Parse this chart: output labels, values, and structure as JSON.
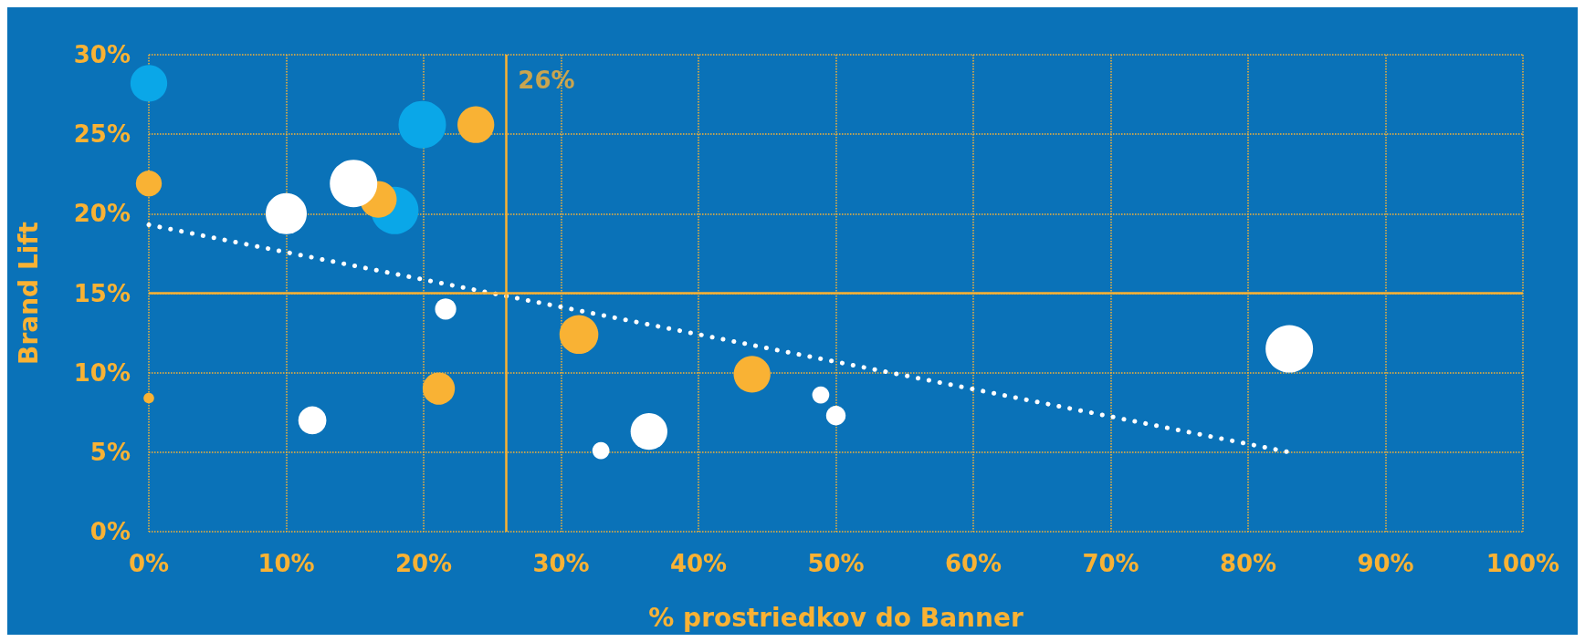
{
  "chart_data": {
    "type": "bubble",
    "xlabel": "% prostriedkov do Banner",
    "ylabel": "Brand Lift",
    "xlim": [
      0,
      100
    ],
    "xticks": [
      {
        "value": 0,
        "label": "0%"
      },
      {
        "value": 10,
        "label": "10%"
      },
      {
        "value": 20,
        "label": "20%"
      },
      {
        "value": 30,
        "label": "30%"
      },
      {
        "value": 40,
        "label": "40%"
      },
      {
        "value": 50,
        "label": "50%"
      },
      {
        "value": 60,
        "label": "60%"
      },
      {
        "value": 70,
        "label": "70%"
      },
      {
        "value": 80,
        "label": "80%"
      },
      {
        "value": 90,
        "label": "90%"
      },
      {
        "value": 100,
        "label": "100%"
      }
    ],
    "ylim": [
      0,
      30
    ],
    "yticks": [
      {
        "value": 0,
        "label": "0%"
      },
      {
        "value": 5,
        "label": "5%"
      },
      {
        "value": 10,
        "label": "10%"
      },
      {
        "value": 15,
        "label": "15%"
      },
      {
        "value": 20,
        "label": "20%"
      },
      {
        "value": 25,
        "label": "25%"
      },
      {
        "value": 30,
        "label": "30%"
      }
    ],
    "grid": true,
    "series": [
      {
        "color": "#0aa7e8",
        "x": [
          0,
          19.9,
          17.9
        ],
        "values": [
          28.2,
          25.6,
          20.2
        ],
        "sizes": [
          0.6,
          1,
          1
        ]
      },
      {
        "color": "#f9b234",
        "x": [
          23.8,
          0,
          16.7,
          31.3,
          21.1,
          43.9,
          0
        ],
        "values": [
          25.6,
          21.9,
          20.9,
          12.4,
          9.0,
          9.9,
          8.4
        ],
        "sizes": [
          0.6,
          0.3,
          0.6,
          0.67,
          0.46,
          0.6,
          0.05
        ]
      },
      {
        "color": "#ffffff",
        "x": [
          14.9,
          10.0,
          21.6,
          11.9,
          36.4,
          32.9,
          48.9,
          50.0,
          83.0
        ],
        "values": [
          21.9,
          20.0,
          14.0,
          7.0,
          6.3,
          5.1,
          8.6,
          7.3,
          11.5
        ],
        "sizes": [
          1,
          0.75,
          0.2,
          0.35,
          0.6,
          0.13,
          0.13,
          0.17,
          1
        ]
      },
      {
        "type": "line",
        "color": "#ffffff",
        "line_style": "dotted",
        "x": [
          0,
          83
        ],
        "values": [
          19.3,
          5.0
        ]
      }
    ],
    "ref_lines": [
      {
        "axis": "x",
        "value": 26,
        "label": "26%",
        "color": "#f9b234"
      },
      {
        "axis": "y",
        "value": 15,
        "color": "#f9b234"
      }
    ]
  }
}
